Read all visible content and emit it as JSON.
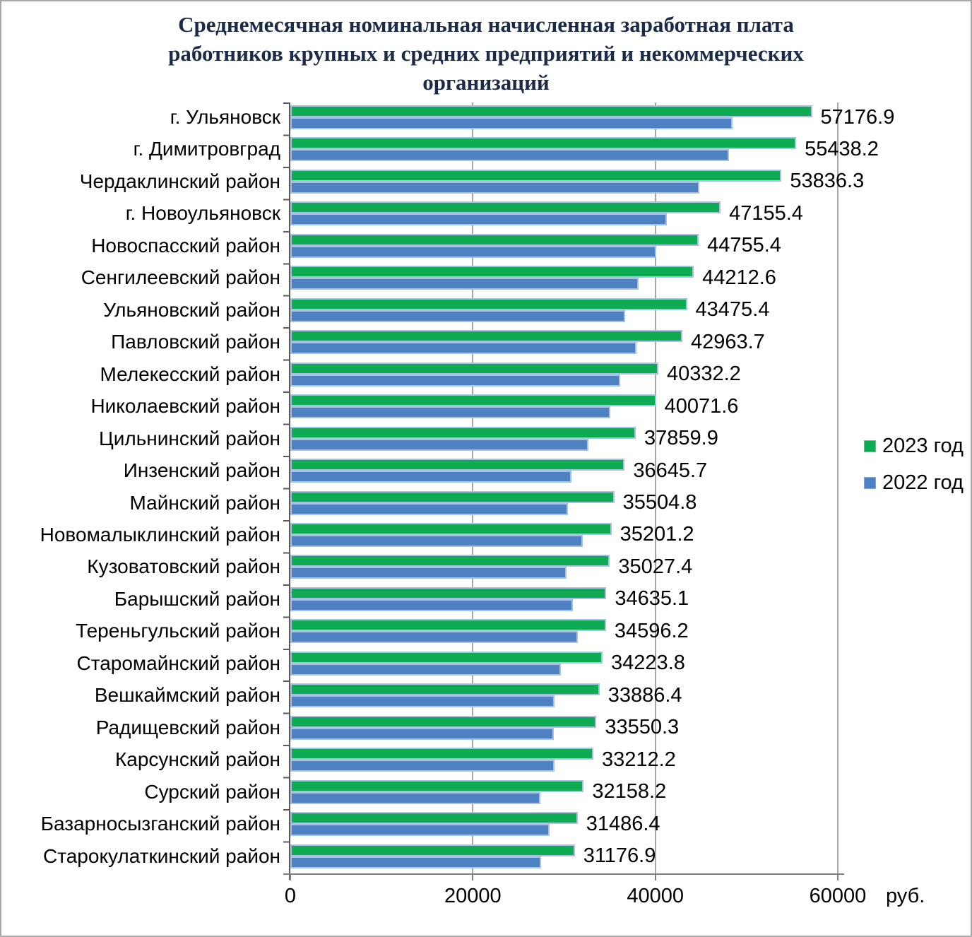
{
  "title": {
    "lines": [
      "Среднемесячная номинальная начисленная заработная плата",
      "работников крупных и средних предприятий и некоммерческих",
      "организаций"
    ],
    "color": "#1b2b47"
  },
  "legend": {
    "items": [
      {
        "label": "2023 год",
        "color": "#0fab53"
      },
      {
        "label": "2022 год",
        "color": "#4e81c1"
      }
    ],
    "position": "right"
  },
  "axis": {
    "x_tick_labels": [
      "0",
      "20000",
      "40000",
      "60000"
    ],
    "unit_label": "руб."
  },
  "colors": {
    "bar_2023": "#0fab53",
    "bar_2022": "#4e81c1",
    "bar_border": "#a6c3e6",
    "gridline": "#a6a6a6",
    "axis_line": "#595959",
    "frame_border": "#a8a8a8"
  },
  "chart_data": {
    "type": "bar",
    "orientation": "horizontal",
    "title": "Среднемесячная номинальная начисленная заработная плата работников крупных и средних предприятий и некоммерческих организаций",
    "xlabel": "руб.",
    "ylabel": "",
    "xlim": [
      0,
      60000
    ],
    "x_ticks": [
      0,
      20000,
      40000,
      60000
    ],
    "grid": true,
    "legend_position": "right",
    "value_labels_shown_for": "2023 год",
    "categories": [
      "г. Ульяновск",
      "г. Димитровград",
      "Чердаклинский район",
      "г. Новоульяновск",
      "Новоспасский район",
      "Сенгилеевский район",
      "Ульяновский район",
      "Павловский район",
      "Мелекесский район",
      "Николаевский район",
      "Цильнинский район",
      "Инзенский район",
      "Майнский район",
      "Новомалыклинский район",
      "Кузоватовский район",
      "Барышский район",
      "Тереньгульский район",
      "Старомайнский район",
      "Вешкаймский район",
      "Радищевский район",
      "Карсунский район",
      "Сурский район",
      "Базарносызганский район",
      "Старокулаткинский район"
    ],
    "series": [
      {
        "name": "2023 год",
        "color": "#0fab53",
        "values": [
          57176.9,
          55438.2,
          53836.3,
          47155.4,
          44755.4,
          44212.6,
          43475.4,
          42963.7,
          40332.2,
          40071.6,
          37859.9,
          36645.7,
          35504.8,
          35201.2,
          35027.4,
          34635.1,
          34596.2,
          34223.8,
          33886.4,
          33550.3,
          33212.2,
          32158.2,
          31486.4,
          31176.9
        ]
      },
      {
        "name": "2022 год",
        "color": "#4e81c1",
        "values_estimated_from_pixels": true,
        "values": [
          48500,
          48100,
          44800,
          41300,
          40100,
          38150,
          36700,
          37900,
          36150,
          35100,
          32700,
          30800,
          30450,
          32050,
          30300,
          31000,
          31500,
          29650,
          28950,
          28900,
          28950,
          27400,
          28400,
          27500
        ]
      }
    ]
  }
}
